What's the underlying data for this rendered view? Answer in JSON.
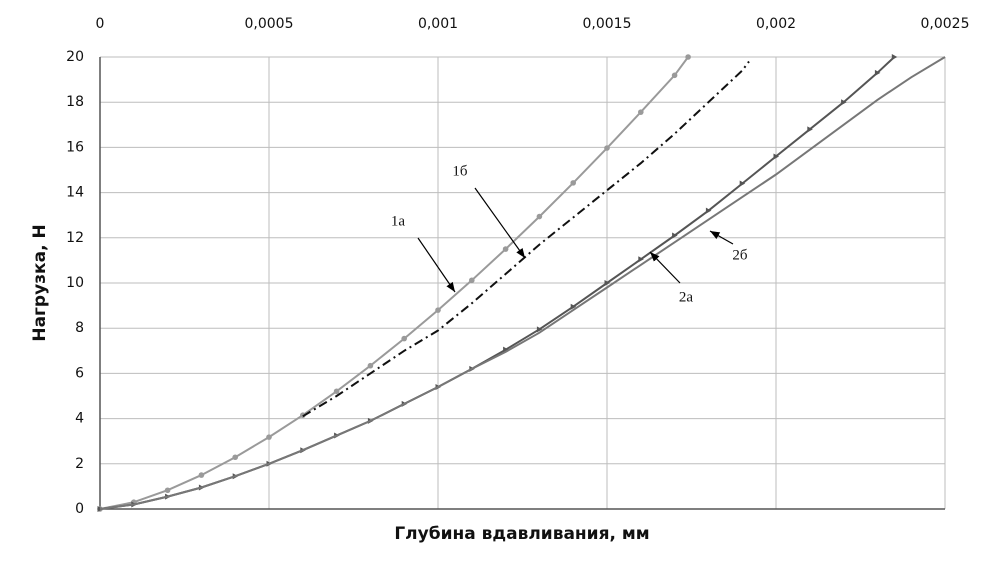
{
  "chart_data": {
    "type": "line",
    "x_label": "Глубина вдавливания, мм",
    "y_label": "Нагрузка, Н",
    "xlim": [
      0,
      0.0025
    ],
    "xticks": [
      0,
      {
        "value": 0.0005,
        "label": "0,0005"
      },
      {
        "value": 0.001,
        "label": "0,001"
      },
      {
        "value": 0.0015,
        "label": "0,0015"
      },
      {
        "value": 0.002,
        "label": "0,002"
      },
      {
        "value": 0.0025,
        "label": "0,0025"
      }
    ],
    "ylim": [
      0,
      20
    ],
    "yticks": [
      0,
      2,
      4,
      6,
      8,
      10,
      12,
      14,
      16,
      18,
      20
    ],
    "grid": true,
    "annotations": [
      "1а",
      "1б",
      "2а",
      "2б"
    ],
    "series": [
      {
        "name": "1а",
        "color": "#9a9a9a",
        "marker": "circle",
        "dash": "solid",
        "x": [
          0,
          0.0001,
          0.0002,
          0.0003,
          0.0004,
          0.0005,
          0.0006,
          0.0007,
          0.0008,
          0.0009,
          0.001,
          0.0011,
          0.0012,
          0.0013,
          0.0014,
          0.0015,
          0.0016,
          0.0017,
          0.00174
        ],
        "values": [
          0,
          0.3,
          0.83,
          1.5,
          2.29,
          3.18,
          4.15,
          5.21,
          6.34,
          7.54,
          8.8,
          10.12,
          11.5,
          12.94,
          14.43,
          15.97,
          17.56,
          19.19,
          20
        ]
      },
      {
        "name": "1б",
        "color": "#111111",
        "marker": "none",
        "dash": "dashdot",
        "x": [
          0.0006,
          0.0007,
          0.0008,
          0.0009,
          0.001,
          0.0011,
          0.0012,
          0.0013,
          0.0014,
          0.0015,
          0.0016,
          0.0017,
          0.0018,
          0.0019,
          0.00192
        ],
        "values": [
          4.1,
          5.0,
          6.0,
          7.0,
          7.9,
          9.1,
          10.4,
          11.7,
          12.9,
          14.1,
          15.3,
          16.6,
          18.0,
          19.4,
          19.8
        ]
      },
      {
        "name": "2а",
        "color": "#555555",
        "marker": "triangle",
        "dash": "solid",
        "x": [
          0,
          0.0001,
          0.0002,
          0.0003,
          0.0004,
          0.0005,
          0.0006,
          0.0007,
          0.0008,
          0.0009,
          0.001,
          0.0011,
          0.0012,
          0.0013,
          0.0014,
          0.0015,
          0.0016,
          0.0017,
          0.0018,
          0.0019,
          0.002,
          0.0021,
          0.0022,
          0.0023,
          0.00235
        ],
        "values": [
          0,
          0.2,
          0.55,
          0.95,
          1.45,
          2.0,
          2.6,
          3.25,
          3.9,
          4.65,
          5.4,
          6.2,
          7.05,
          7.95,
          8.95,
          10.0,
          11.05,
          12.1,
          13.2,
          14.4,
          15.6,
          16.8,
          18.0,
          19.3,
          20
        ]
      },
      {
        "name": "2б",
        "color": "#777777",
        "marker": "none",
        "dash": "solid",
        "x": [
          0,
          0.0001,
          0.0002,
          0.0003,
          0.0004,
          0.0005,
          0.0006,
          0.0007,
          0.0008,
          0.0009,
          0.001,
          0.0011,
          0.0012,
          0.0013,
          0.0014,
          0.0015,
          0.0016,
          0.0017,
          0.0018,
          0.0019,
          0.002,
          0.0021,
          0.0022,
          0.0023,
          0.0024,
          0.0025
        ],
        "values": [
          0,
          0.2,
          0.55,
          0.95,
          1.45,
          2.0,
          2.6,
          3.25,
          3.9,
          4.65,
          5.4,
          6.2,
          6.95,
          7.8,
          8.8,
          9.8,
          10.8,
          11.8,
          12.8,
          13.8,
          14.8,
          15.9,
          17.0,
          18.1,
          19.1,
          20.0
        ]
      }
    ]
  }
}
